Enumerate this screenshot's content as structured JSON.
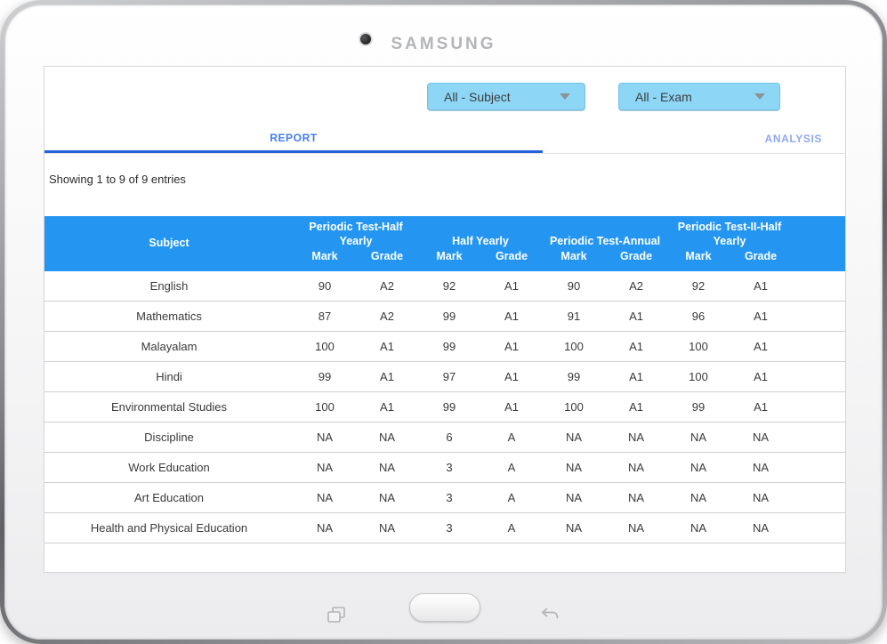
{
  "device": {
    "brand": "SAMSUNG"
  },
  "filters": {
    "subject": {
      "value": "All - Subject"
    },
    "exam": {
      "value": "All - Exam"
    }
  },
  "tabs": {
    "report": "REPORT",
    "analysis": "ANALYSIS"
  },
  "summary": "Showing 1 to 9 of 9 entries",
  "report_table": {
    "subject_header": "Subject",
    "mark_label": "Mark",
    "grade_label": "Grade",
    "groups": [
      "Periodic Test-Half Yearly",
      "Half Yearly",
      "Periodic Test-Annual",
      "Periodic Test-II-Half Yearly"
    ],
    "rows": [
      {
        "subject": "English",
        "values": [
          "90",
          "A2",
          "92",
          "A1",
          "90",
          "A2",
          "92",
          "A1"
        ]
      },
      {
        "subject": "Mathematics",
        "values": [
          "87",
          "A2",
          "99",
          "A1",
          "91",
          "A1",
          "96",
          "A1"
        ]
      },
      {
        "subject": "Malayalam",
        "values": [
          "100",
          "A1",
          "99",
          "A1",
          "100",
          "A1",
          "100",
          "A1"
        ]
      },
      {
        "subject": "Hindi",
        "values": [
          "99",
          "A1",
          "97",
          "A1",
          "99",
          "A1",
          "100",
          "A1"
        ]
      },
      {
        "subject": "Environmental Studies",
        "values": [
          "100",
          "A1",
          "99",
          "A1",
          "100",
          "A1",
          "99",
          "A1"
        ]
      },
      {
        "subject": "Discipline",
        "values": [
          "NA",
          "NA",
          "6",
          "A",
          "NA",
          "NA",
          "NA",
          "NA"
        ]
      },
      {
        "subject": "Work Education",
        "values": [
          "NA",
          "NA",
          "3",
          "A",
          "NA",
          "NA",
          "NA",
          "NA"
        ]
      },
      {
        "subject": "Art Education",
        "values": [
          "NA",
          "NA",
          "3",
          "A",
          "NA",
          "NA",
          "NA",
          "NA"
        ]
      },
      {
        "subject": "Health and Physical Education",
        "values": [
          "NA",
          "NA",
          "3",
          "A",
          "NA",
          "NA",
          "NA",
          "NA"
        ]
      }
    ]
  },
  "colors": {
    "table_header_bg": "#2496f2",
    "dropdown_bg": "#8ed6f5",
    "tab_active_text": "#3f7cf3",
    "tab_inactive_text": "#8fa9f2",
    "tab_underline": "#2263dd"
  }
}
